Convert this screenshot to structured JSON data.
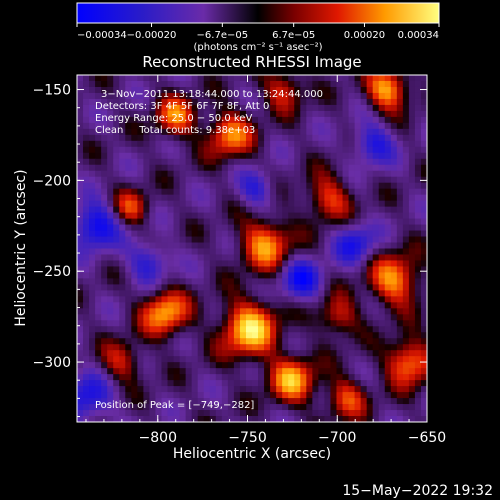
{
  "chart_data": {
    "type": "heatmap",
    "title": "Reconstructed RHESSI Image",
    "xlabel": "Heliocentric X (arcsec)",
    "ylabel": "Heliocentric Y (arcsec)",
    "xlim": [
      -845,
      -650
    ],
    "ylim": [
      -333,
      -142
    ],
    "x_ticks": [
      -800,
      -750,
      -700,
      -650
    ],
    "y_ticks": [
      -150,
      -200,
      -250,
      -300
    ],
    "x_tick_labels": [
      "−800",
      "−750",
      "−700",
      "−650"
    ],
    "y_tick_labels": [
      "−150",
      "−200",
      "−250",
      "−300"
    ],
    "colorbar": {
      "range": [
        -0.00034,
        0.00034
      ],
      "tick_values": [
        -0.00034,
        -0.0002,
        -6.7e-05,
        6.7e-05,
        0.0002,
        0.00034
      ],
      "tick_labels": [
        "−0.00034",
        "−0.00020",
        "−6.7e−05",
        "6.7e−05",
        "0.00020",
        "0.00034"
      ],
      "unit_label": "(photons cm⁻² s⁻¹ asec⁻²)"
    },
    "annotations": {
      "time": "3−Nov−2011 13:18:44.000 to 13:24:44.000",
      "detectors": "Detectors: 3F 4F 5F 6F 7F 8F, Att 0",
      "energy": "Energy Range: 25.0 − 50.0 keV",
      "clean": "Clean     Total counts: 9.38e+03",
      "peak": "Position of Peak = [−749,−282]"
    },
    "peak": [
      -749,
      -282
    ],
    "footer_date": "15−May−2022 19:32"
  }
}
